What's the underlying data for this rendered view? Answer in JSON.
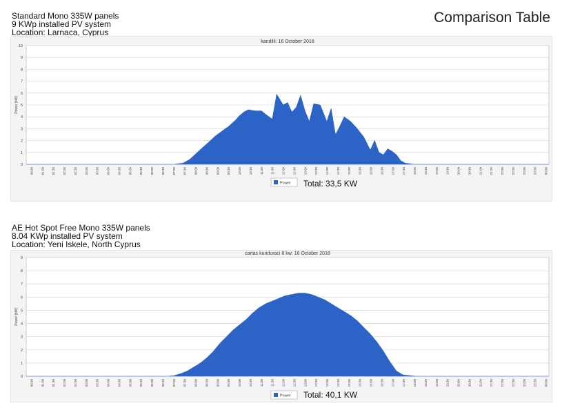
{
  "page": {
    "title": "Comparison Table",
    "top_description": [
      "Standard Mono 335W panels",
      "9 KWp installed PV system",
      "Location: Larnaca, Cyprus"
    ],
    "bottom_description": [
      "AE Hot Spot Free Mono 335W panels",
      "8.04 KWp installed PV system",
      "Location: Yeni Iskele, North Cyprus"
    ],
    "top_total": "Total: 33,5 KW",
    "bottom_total": "Total: 40,1 KW"
  },
  "colors": {
    "area": "#2b63c6",
    "grid": "#dcdcdc",
    "panel": "#f4f4f4"
  },
  "chart_data": [
    {
      "type": "area",
      "title": "kandilli: 16 October 2018",
      "ylabel": "Power [kW]",
      "ylim": [
        0,
        10
      ],
      "yticks": [
        0,
        1,
        2,
        3,
        4,
        5,
        6,
        7,
        8,
        9,
        10
      ],
      "xlim": [
        0,
        24
      ],
      "xticks": [
        "00:30",
        "01:00",
        "01:30",
        "02:00",
        "02:30",
        "03:00",
        "03:30",
        "04:00",
        "04:30",
        "05:00",
        "05:30",
        "06:00",
        "06:30",
        "07:00",
        "07:30",
        "08:00",
        "08:30",
        "09:00",
        "09:30",
        "10:00",
        "10:30",
        "11:00",
        "11:30",
        "12:00",
        "12:30",
        "13:00",
        "13:30",
        "14:00",
        "14:30",
        "15:00",
        "15:30",
        "16:00",
        "16:30",
        "17:00",
        "17:30",
        "18:00",
        "18:30",
        "19:00",
        "19:30",
        "20:00",
        "20:30",
        "21:00",
        "21:30",
        "22:00",
        "22:30",
        "23:00",
        "23:30",
        "00:00"
      ],
      "legend": [
        "Power"
      ],
      "series": [
        {
          "name": "Power",
          "x": [
            0,
            6.8,
            7.2,
            7.5,
            7.8,
            8.1,
            8.4,
            8.7,
            9.0,
            9.3,
            9.6,
            9.8,
            10.0,
            10.2,
            10.5,
            10.8,
            11.0,
            11.3,
            11.5,
            11.8,
            12.0,
            12.2,
            12.4,
            12.6,
            12.8,
            13.0,
            13.2,
            13.5,
            13.8,
            14.0,
            14.2,
            14.4,
            14.6,
            14.9,
            15.2,
            15.5,
            15.8,
            16.0,
            16.2,
            16.4,
            16.6,
            16.8,
            17.0,
            17.2,
            17.4,
            17.6,
            17.8,
            18.0,
            18.3,
            24
          ],
          "y": [
            0,
            0,
            0.1,
            0.4,
            0.9,
            1.4,
            1.9,
            2.4,
            2.8,
            3.2,
            3.7,
            4.1,
            4.4,
            4.6,
            4.5,
            4.5,
            4.2,
            3.8,
            5.9,
            5.0,
            5.2,
            4.4,
            4.8,
            5.8,
            4.5,
            3.6,
            5.1,
            5.0,
            3.6,
            4.7,
            2.5,
            3.2,
            4.0,
            3.6,
            3.0,
            2.3,
            1.2,
            2.0,
            1.0,
            0.8,
            1.3,
            1.1,
            0.8,
            0.3,
            0.1,
            0.05,
            0,
            0,
            0,
            0
          ]
        }
      ]
    },
    {
      "type": "area",
      "title": "cartas kunduraci 8 kw: 16 October 2018",
      "ylabel": "Power [kW]",
      "ylim": [
        0,
        9
      ],
      "yticks": [
        0,
        1,
        2,
        3,
        4,
        5,
        6,
        7,
        8,
        9
      ],
      "xlim": [
        0,
        24
      ],
      "xticks": [
        "00:30",
        "01:00",
        "01:30",
        "02:00",
        "02:30",
        "03:00",
        "03:30",
        "04:00",
        "04:30",
        "05:00",
        "05:30",
        "06:00",
        "06:30",
        "07:00",
        "07:30",
        "08:00",
        "08:30",
        "09:00",
        "09:30",
        "10:00",
        "10:30",
        "11:00",
        "11:30",
        "12:00",
        "12:30",
        "13:00",
        "13:30",
        "14:00",
        "14:30",
        "15:00",
        "15:30",
        "16:00",
        "16:30",
        "17:00",
        "17:30",
        "18:00",
        "18:30",
        "19:00",
        "19:30",
        "20:00",
        "20:30",
        "21:00",
        "21:30",
        "22:00",
        "22:30",
        "23:00",
        "23:30",
        "00:00"
      ],
      "legend": [
        "Power"
      ],
      "series": [
        {
          "name": "Power",
          "x": [
            0,
            6.5,
            6.8,
            7.1,
            7.4,
            7.7,
            8.0,
            8.3,
            8.6,
            8.9,
            9.2,
            9.5,
            9.8,
            10.1,
            10.4,
            10.7,
            11.0,
            11.3,
            11.6,
            11.9,
            12.2,
            12.5,
            12.8,
            13.1,
            13.4,
            13.7,
            14.0,
            14.3,
            14.6,
            14.9,
            15.2,
            15.5,
            15.8,
            16.1,
            16.4,
            16.7,
            17.0,
            17.3,
            17.6,
            17.9,
            18.2,
            24
          ],
          "y": [
            0,
            0,
            0.05,
            0.2,
            0.4,
            0.7,
            1.0,
            1.4,
            1.9,
            2.5,
            3.0,
            3.5,
            3.9,
            4.3,
            4.8,
            5.2,
            5.5,
            5.7,
            5.9,
            6.1,
            6.2,
            6.3,
            6.3,
            6.2,
            6.0,
            5.8,
            5.5,
            5.2,
            4.9,
            4.6,
            4.2,
            3.7,
            3.2,
            2.6,
            1.9,
            1.1,
            0.4,
            0.1,
            0.05,
            0,
            0,
            0
          ]
        }
      ]
    }
  ]
}
